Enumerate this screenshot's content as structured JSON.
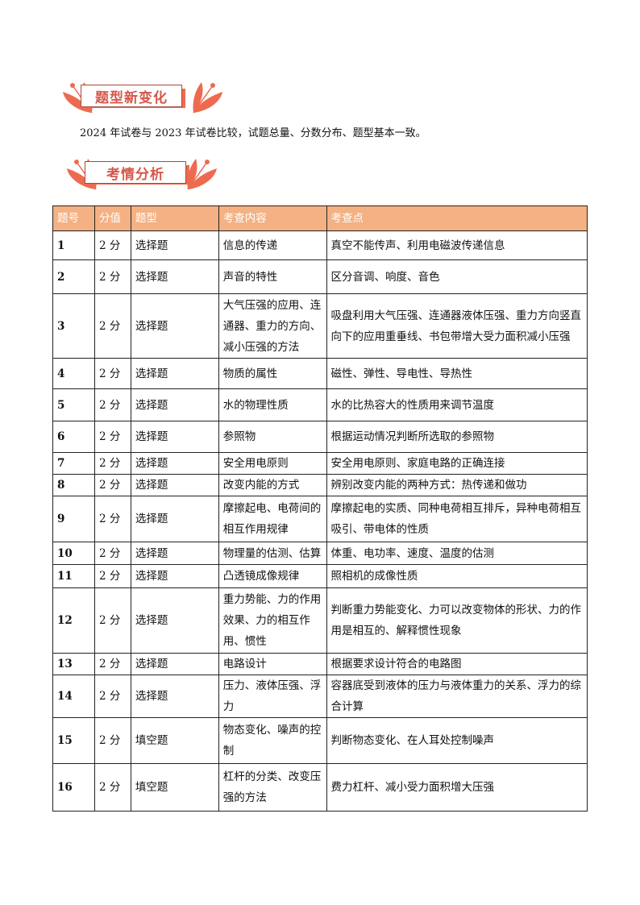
{
  "sections": {
    "changes_title": "题型新变化",
    "changes_text": "2024 年试卷与 2023 年试卷比较，试题总量、分数分布、题型基本一致。",
    "analysis_title": "考情分析"
  },
  "colors": {
    "accent": "#ee6a4f",
    "header_bg": "#f4b183",
    "title_text": "#d4574a"
  },
  "table": {
    "headers": [
      "题号",
      "分值",
      "题型",
      "考查内容",
      "考查点"
    ],
    "rows": [
      [
        "1",
        "2 分",
        "选择题",
        "信息的传递",
        "真空不能传声、利用电磁波传递信息"
      ],
      [
        "2",
        "2 分",
        "选择题",
        "声音的特性",
        "区分音调、响度、音色"
      ],
      [
        "3",
        "2 分",
        "选择题",
        "大气压强的应用、连通器、重力的方向、减小压强的方法",
        "吸盘利用大气压强、连通器液体压强、重力方向竖直向下的应用重垂线、书包带增大受力面积减小压强"
      ],
      [
        "4",
        "2 分",
        "选择题",
        "物质的属性",
        "磁性、弹性、导电性、导热性"
      ],
      [
        "5",
        "2 分",
        "选择题",
        "水的物理性质",
        "水的比热容大的性质用来调节温度"
      ],
      [
        "6",
        "2 分",
        "选择题",
        "参照物",
        "根据运动情况判断所选取的参照物"
      ],
      [
        "7",
        "2 分",
        "选择题",
        "安全用电原则",
        "安全用电原则、家庭电路的正确连接"
      ],
      [
        "8",
        "2 分",
        "选择题",
        "改变内能的方式",
        "辨别改变内能的两种方式：热传递和做功"
      ],
      [
        "9",
        "2 分",
        "选择题",
        "摩擦起电、电荷间的相互作用规律",
        "摩擦起电的实质、同种电荷相互排斥，异种电荷相互吸引、带电体的性质"
      ],
      [
        "10",
        "2 分",
        "选择题",
        "物理量的估测、估算",
        "体重、电功率、速度、温度的估测"
      ],
      [
        "11",
        "2 分",
        "选择题",
        "凸透镜成像规律",
        "照相机的成像性质"
      ],
      [
        "12",
        "2 分",
        "选择题",
        "重力势能、力的作用效果、力的相互作用、惯性",
        "判断重力势能变化、力可以改变物体的形状、力的作用是相互的、解释惯性现象"
      ],
      [
        "13",
        "2 分",
        "选择题",
        "电路设计",
        "根据要求设计符合的电路图"
      ],
      [
        "14",
        "2 分",
        "选择题",
        "压力、液体压强、浮力",
        "容器底受到液体的压力与液体重力的关系、浮力的综合计算"
      ],
      [
        "15",
        "2 分",
        "填空题",
        "物态变化、噪声的控制",
        "判断物态变化、在人耳处控制噪声"
      ],
      [
        "16",
        "2 分",
        "填空题",
        "杠杆的分类、改变压强的方法",
        "费力杠杆、减小受力面积增大压强"
      ]
    ]
  }
}
